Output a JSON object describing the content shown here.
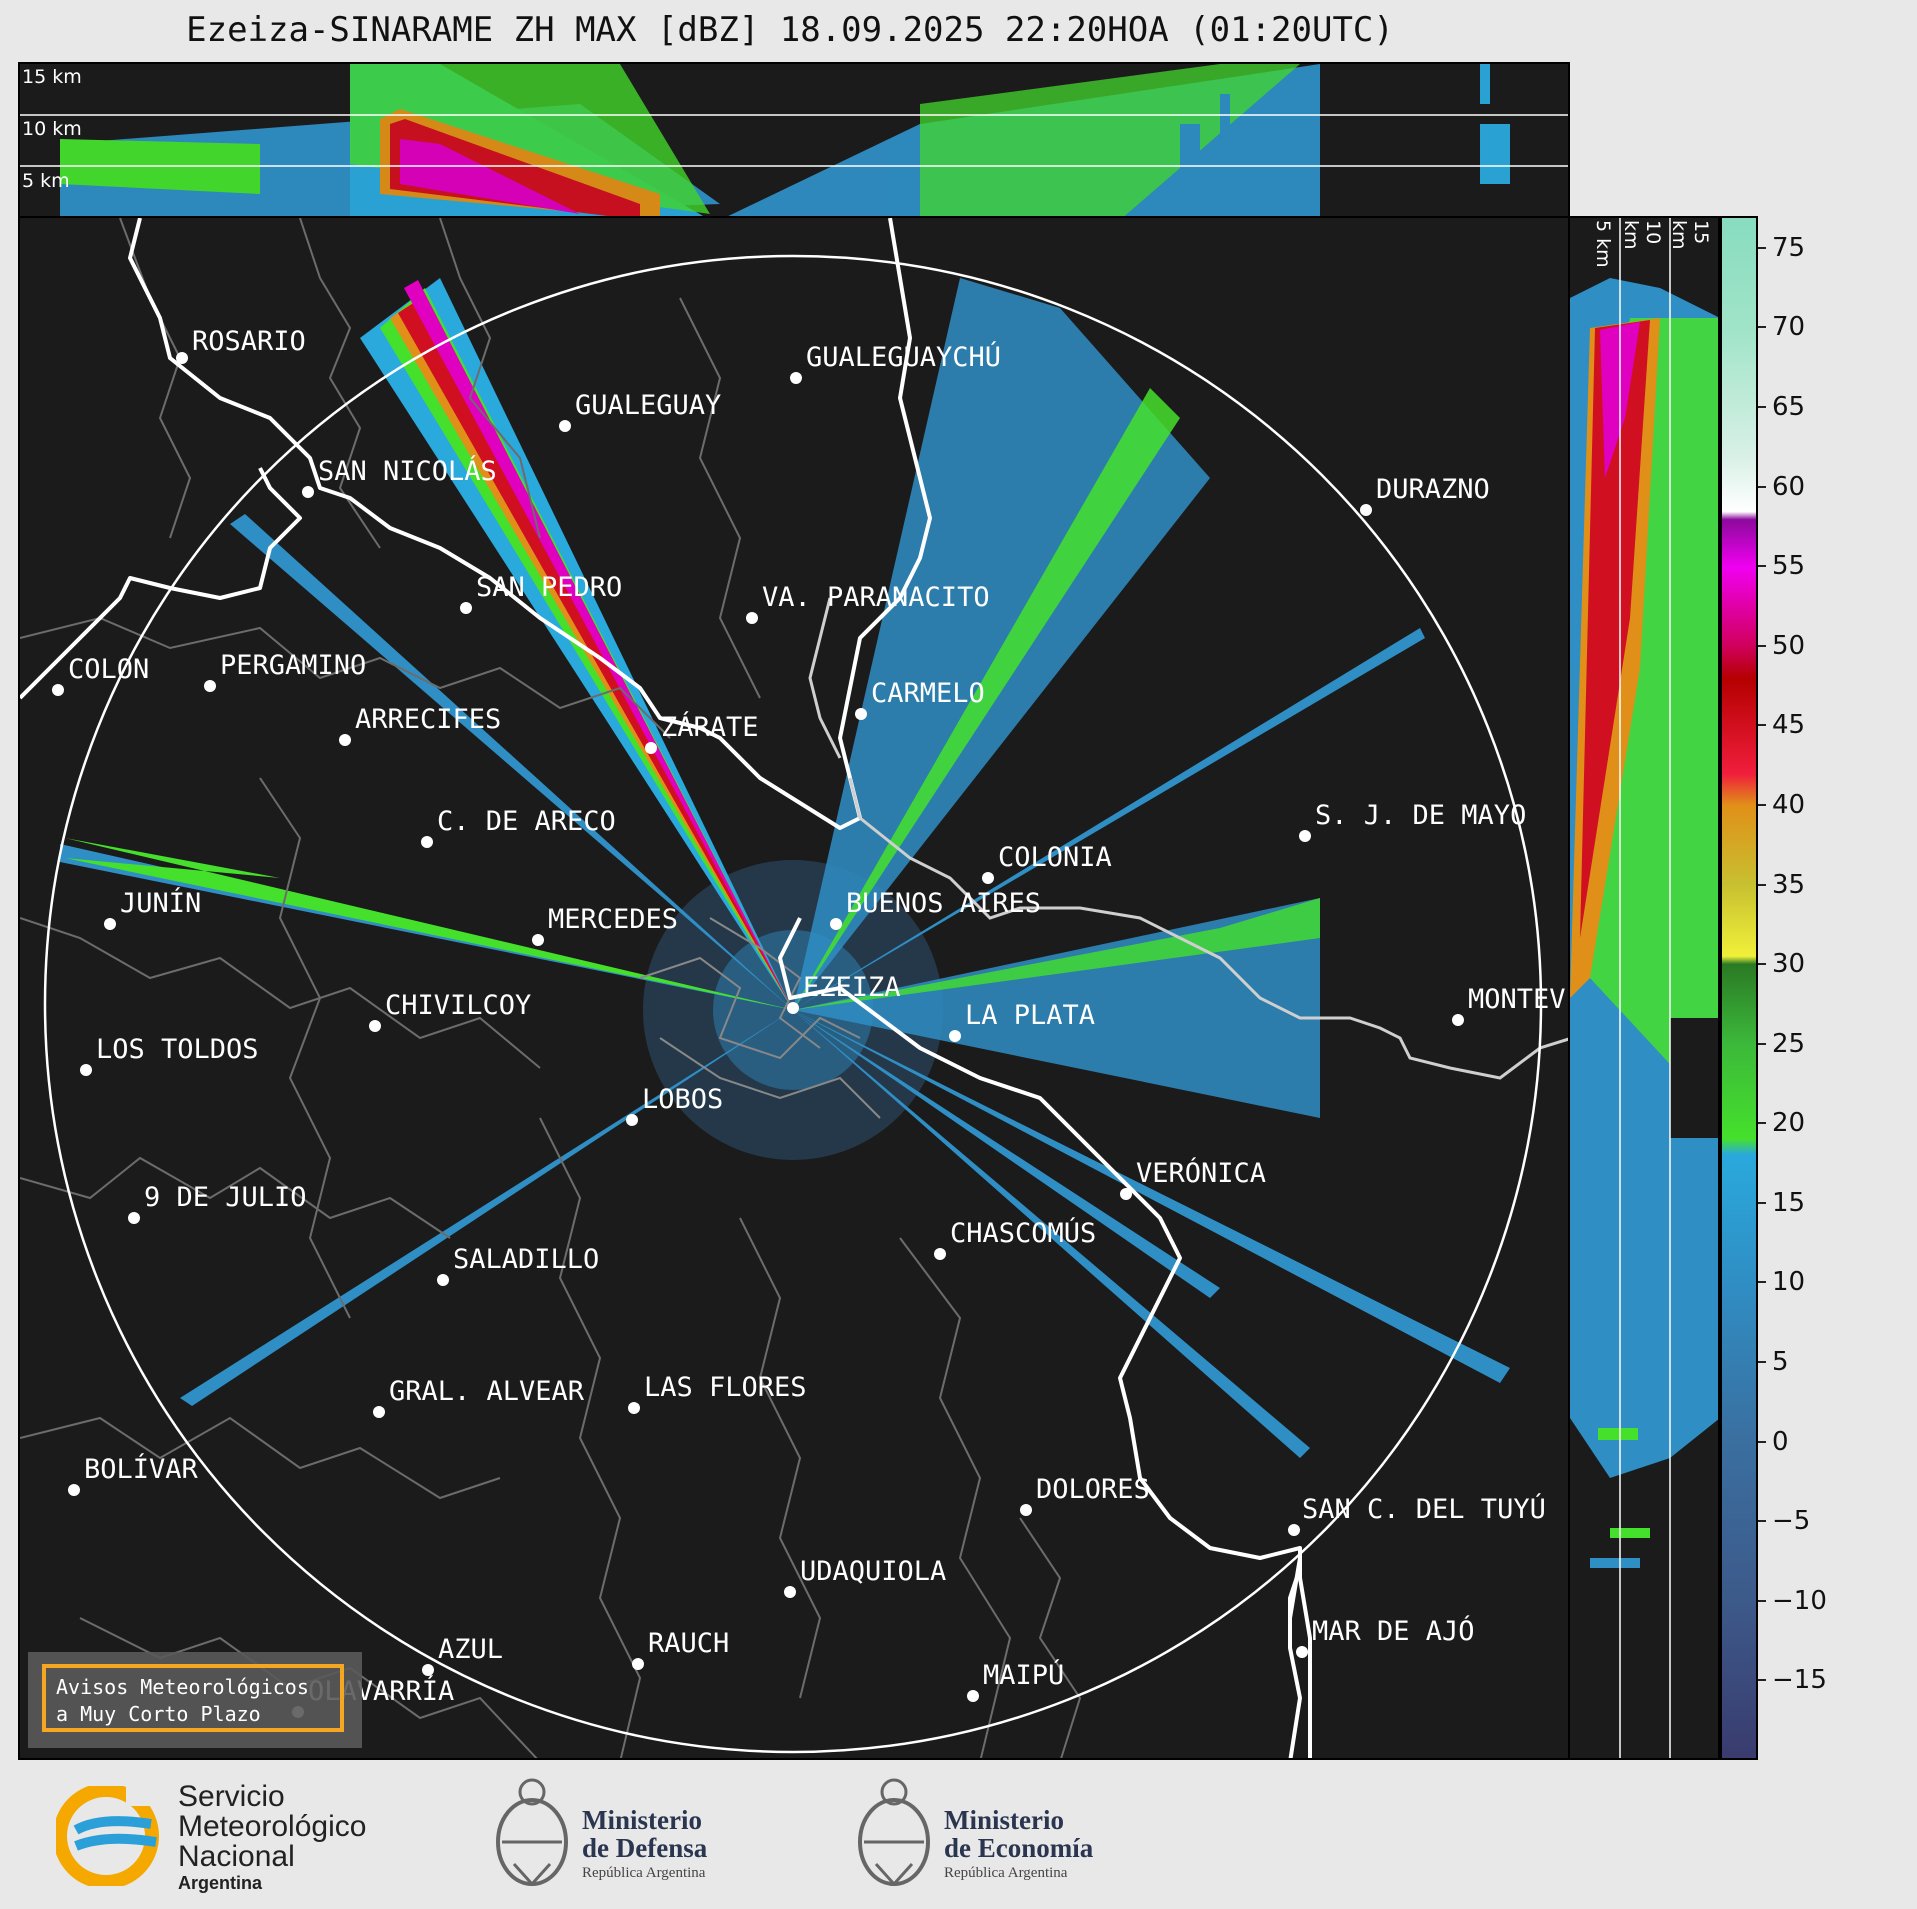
{
  "title": "Ezeiza-SINARAME ZH MAX [dBZ] 18.09.2025 22:20HOA (01:20UTC)",
  "altitude_labels": [
    "15 km",
    "10 km",
    "5 km"
  ],
  "side_altitude_labels": [
    "5 km",
    "10 km",
    "15 km"
  ],
  "cities": [
    {
      "name": "ROSARIO"
    },
    {
      "name": "GUALEGUAYCHÚ"
    },
    {
      "name": "GUALEGUAY"
    },
    {
      "name": "SAN NICOLÁS"
    },
    {
      "name": "DURAZNO"
    },
    {
      "name": "SAN PEDRO"
    },
    {
      "name": "VA. PARANACITO"
    },
    {
      "name": "COLON"
    },
    {
      "name": "PERGAMINO"
    },
    {
      "name": "CARMELO"
    },
    {
      "name": "ARRECIFES"
    },
    {
      "name": "ZÁRATE"
    },
    {
      "name": "C. DE ARECO"
    },
    {
      "name": "S. J. DE MAYO"
    },
    {
      "name": "COLONIA"
    },
    {
      "name": "JUNÍN"
    },
    {
      "name": "BUENOS AIRES"
    },
    {
      "name": "MERCEDES"
    },
    {
      "name": "EZEIZA"
    },
    {
      "name": "MONTEVIDEO"
    },
    {
      "name": "CHIVILCOY"
    },
    {
      "name": "LA PLATA"
    },
    {
      "name": "LOS TOLDOS"
    },
    {
      "name": "LOBOS"
    },
    {
      "name": "VERÓNICA"
    },
    {
      "name": "9 DE JULIO"
    },
    {
      "name": "CHASCOMÚS"
    },
    {
      "name": "SALADILLO"
    },
    {
      "name": "GRAL. ALVEAR"
    },
    {
      "name": "LAS FLORES"
    },
    {
      "name": "BOLÍVAR"
    },
    {
      "name": "DOLORES"
    },
    {
      "name": "SAN C. DEL TUYÚ"
    },
    {
      "name": "UDAQUIOLA"
    },
    {
      "name": "MAR DE AJÓ"
    },
    {
      "name": "RAUCH"
    },
    {
      "name": "AZUL"
    },
    {
      "name": "OLAVARRÍA"
    },
    {
      "name": "MAIPÚ"
    }
  ],
  "colorbar": {
    "unit": "dBZ",
    "ticks": [
      "75",
      "70",
      "65",
      "60",
      "55",
      "50",
      "45",
      "40",
      "35",
      "30",
      "25",
      "20",
      "15",
      "10",
      "5",
      "0",
      "−5",
      "−10",
      "−15"
    ],
    "min": -20,
    "max": 77,
    "stops": [
      {
        "v": -20,
        "c": "#3a3b6e"
      },
      {
        "v": -10,
        "c": "#3c5a8a"
      },
      {
        "v": 0,
        "c": "#3a6fa0"
      },
      {
        "v": 10,
        "c": "#2f8ec4"
      },
      {
        "v": 18,
        "c": "#2aa9dc"
      },
      {
        "v": 19,
        "c": "#45e02c"
      },
      {
        "v": 25,
        "c": "#3cb83a"
      },
      {
        "v": 30,
        "c": "#2a7a24"
      },
      {
        "v": 30.5,
        "c": "#f0f03a"
      },
      {
        "v": 35,
        "c": "#c8c030"
      },
      {
        "v": 40,
        "c": "#e09018"
      },
      {
        "v": 42,
        "c": "#f01e3c"
      },
      {
        "v": 48,
        "c": "#b40000"
      },
      {
        "v": 50,
        "c": "#d0005a"
      },
      {
        "v": 55,
        "c": "#f000f0"
      },
      {
        "v": 58,
        "c": "#8c0a9c"
      },
      {
        "v": 58.5,
        "c": "#ffffff"
      },
      {
        "v": 62,
        "c": "#d8f0e6"
      },
      {
        "v": 70,
        "c": "#a0e4c8"
      },
      {
        "v": 77,
        "c": "#88dcc0"
      }
    ]
  },
  "warning_box": {
    "line1": "Avisos Meteorológicos",
    "line2": "a Muy Corto Plazo"
  },
  "logos": {
    "smn": {
      "line1": "Servicio",
      "line2": "Meteorológico",
      "line3": "Nacional",
      "line4": "Argentina"
    },
    "defensa": {
      "line1": "Ministerio",
      "line2": "de Defensa",
      "line3": "República Argentina"
    },
    "economia": {
      "line1": "Ministerio",
      "line2": "de Economía",
      "line3": "República Argentina"
    }
  }
}
